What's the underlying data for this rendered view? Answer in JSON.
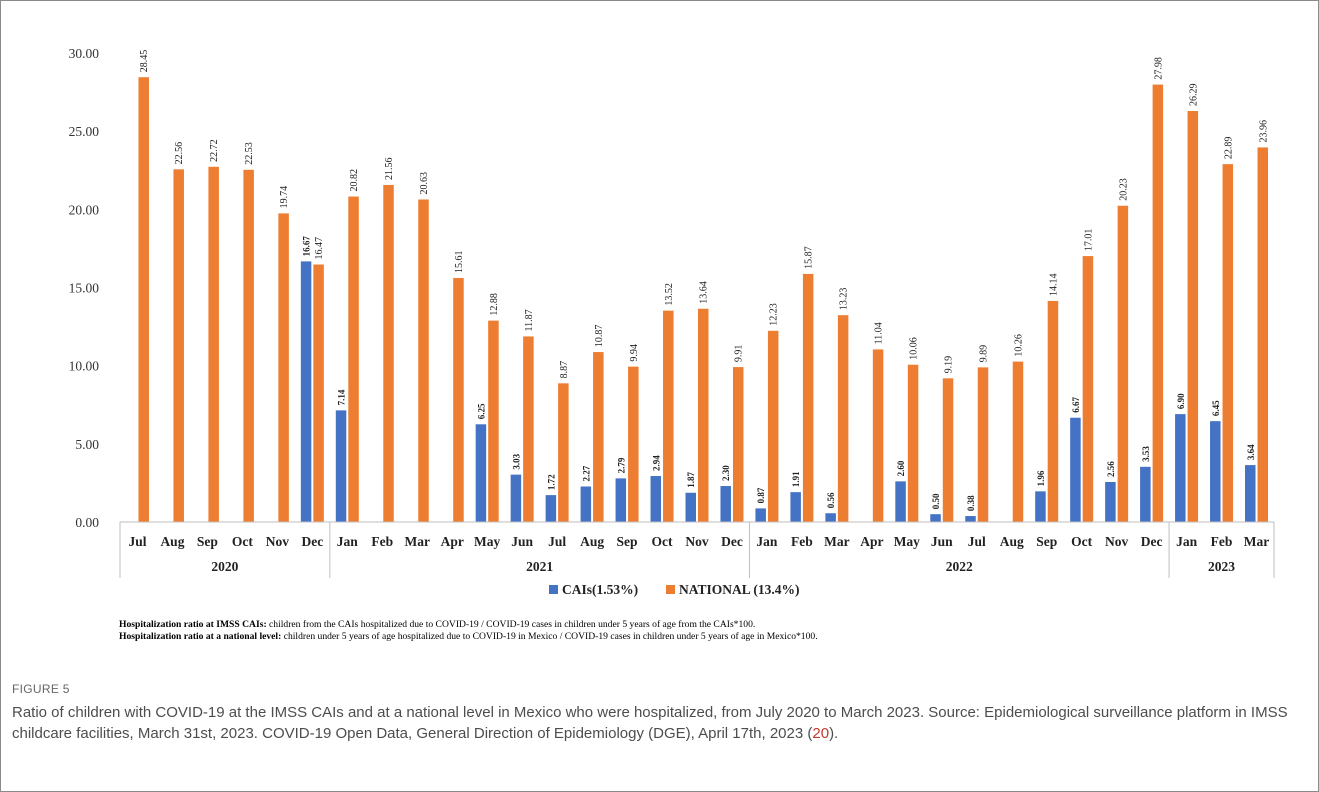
{
  "chart_data": {
    "type": "bar",
    "title": "",
    "xlabel": "",
    "ylabel": "",
    "ylim": [
      0,
      30
    ],
    "yticks": [
      "0.00",
      "5.00",
      "10.00",
      "15.00",
      "20.00",
      "25.00",
      "30.00"
    ],
    "grid": false,
    "legend_position": "bottom",
    "categories": [
      "Jul",
      "Aug",
      "Sep",
      "Oct",
      "Nov",
      "Dec",
      "Jan",
      "Feb",
      "Mar",
      "Apr",
      "May",
      "Jun",
      "Jul",
      "Aug",
      "Sep",
      "Oct",
      "Nov",
      "Dec",
      "Jan",
      "Feb",
      "Mar",
      "Apr",
      "May",
      "Jun",
      "Jul",
      "Aug",
      "Sep",
      "Oct",
      "Nov",
      "Dec",
      "Jan",
      "Feb",
      "Mar"
    ],
    "year_groups": [
      {
        "label": "2020",
        "count": 6
      },
      {
        "label": "2021",
        "count": 12
      },
      {
        "label": "2022",
        "count": 12
      },
      {
        "label": "2023",
        "count": 3
      }
    ],
    "series": [
      {
        "name": "CAIs(1.53%)",
        "color": "#4472C4",
        "values": [
          null,
          null,
          null,
          null,
          null,
          16.67,
          7.14,
          null,
          null,
          null,
          6.25,
          3.03,
          1.72,
          2.27,
          2.79,
          2.94,
          1.87,
          2.3,
          0.87,
          1.91,
          0.56,
          null,
          2.6,
          0.5,
          0.38,
          null,
          1.96,
          6.67,
          2.56,
          3.53,
          6.9,
          6.45,
          3.64
        ],
        "labels": [
          "",
          "",
          "",
          "",
          "",
          "16.67",
          "7.14",
          "",
          "",
          "",
          "6.25",
          "3.03",
          "1.72",
          "2.27",
          "2.79",
          "2.94",
          "1.87",
          "2.30",
          "0.87",
          "1.91",
          "0.56",
          "",
          "2.60",
          "0.50",
          "0.38",
          "",
          "1.96",
          "6.67",
          "2.56",
          "3.53",
          "6.90",
          "6.45",
          "3.64"
        ]
      },
      {
        "name": "NATIONAL (13.4%)",
        "color": "#ED7D31",
        "values": [
          28.45,
          22.56,
          22.72,
          22.53,
          19.74,
          16.47,
          20.82,
          21.56,
          20.63,
          15.61,
          12.88,
          11.87,
          8.87,
          10.87,
          9.94,
          13.52,
          13.64,
          9.91,
          12.23,
          15.87,
          13.23,
          11.04,
          10.06,
          9.19,
          9.89,
          10.26,
          14.14,
          17.01,
          20.23,
          27.98,
          26.29,
          22.89,
          23.96
        ],
        "labels": [
          "28.45",
          "22.56",
          "22.72",
          "22.53",
          "19.74",
          "16.47",
          "20.82",
          "21.56",
          "20.63",
          "15.61",
          "12.88",
          "11.87",
          "8.87",
          "10.87",
          "9.94",
          "13.52",
          "13.64",
          "9.91",
          "12.23",
          "15.87",
          "13.23",
          "11.04",
          "10.06",
          "9.19",
          "9.89",
          "10.26",
          "14.14",
          "17.01",
          "20.23",
          "27.98",
          "26.29",
          "22.89",
          "23.96"
        ]
      }
    ]
  },
  "notes": {
    "cais_label": "Hospitalization ratio at IMSS CAIs:",
    "cais_text": " children from the CAIs hospitalized due to COVID-19 / COVID-19 cases in children under 5 years of age from the CAIs*100.",
    "national_label": "Hospitalization ratio at a national level:",
    "national_text": " children under 5 years of age hospitalized due to COVID-19 in Mexico / COVID-19 cases in children under 5 years of age in Mexico*100."
  },
  "figure": {
    "label": "FIGURE 5",
    "caption_text": "Ratio of children with COVID-19 at the IMSS CAIs and at a national level in Mexico who were hospitalized, from July 2020 to March 2023. Source: Epidemiological surveillance platform in IMSS childcare facilities, March 31st, 2023. COVID-19 Open Data, General Direction of Epidemiology (DGE), April 17th, 2023 (",
    "caption_ref": "20",
    "caption_end": ")."
  }
}
